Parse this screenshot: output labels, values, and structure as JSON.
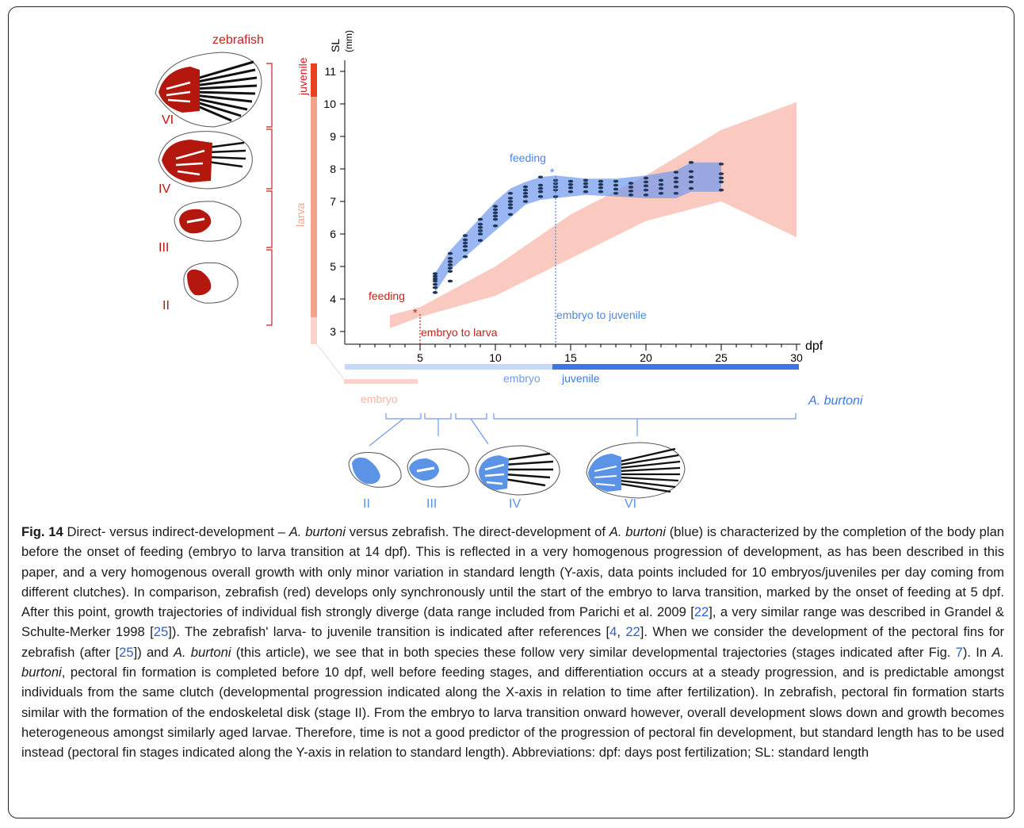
{
  "figure": {
    "zebrafish_title": "zebrafish",
    "aburtoni_title": "A.  burtoni",
    "zebrafish_color": "#c8201c",
    "aburtoni_color": "#4a86e8",
    "zebrafish_stages": [
      {
        "label": "juvenile"
      },
      {
        "label": "larva"
      },
      {
        "label": "embryo"
      }
    ],
    "zebrafish_fin_stages": [
      "VI",
      "IV",
      "III",
      "II"
    ],
    "aburtoni_fin_stages": [
      "II",
      "III",
      "IV",
      "VI"
    ],
    "aburtoni_stages": [
      "embryo",
      "juvenile"
    ],
    "annotations": {
      "zebra_feeding": "feeding",
      "zebra_feeding_star": "*",
      "zebra_transition": "embryo to larva",
      "burtoni_feeding": "feeding",
      "burtoni_feeding_star": "*",
      "burtoni_transition": "embryo to juvenile"
    }
  },
  "chart_data": {
    "type": "scatter",
    "xlabel": "dpf",
    "ylabel": "SL (mm)",
    "xlim": [
      0,
      30
    ],
    "ylim": [
      3,
      11
    ],
    "xticks": [
      5,
      10,
      15,
      20,
      25,
      30
    ],
    "yticks": [
      3,
      4,
      5,
      6,
      7,
      8,
      9,
      10,
      11
    ],
    "zebrafish_feeding_dpf": 5,
    "aburtoni_feeding_dpf": 14,
    "zebrafish_range_band": {
      "x": [
        3,
        5,
        10,
        15,
        20,
        25,
        30
      ],
      "lower": [
        3.1,
        3.45,
        4.1,
        5.25,
        6.4,
        7.0,
        5.9
      ],
      "upper": [
        3.5,
        3.75,
        5.0,
        6.6,
        7.8,
        9.2,
        10.05
      ]
    },
    "aburtoni_range_band": {
      "x": [
        6,
        7,
        8,
        9,
        10,
        11,
        12,
        13,
        14,
        16,
        18,
        20,
        22,
        23,
        24,
        25
      ],
      "lower": [
        4.2,
        4.9,
        5.3,
        5.7,
        6.1,
        6.5,
        6.9,
        7.05,
        7.1,
        7.2,
        7.15,
        7.1,
        7.1,
        7.3,
        7.3,
        7.3
      ],
      "upper": [
        4.8,
        5.5,
        6.0,
        6.5,
        7.0,
        7.4,
        7.6,
        7.75,
        7.8,
        7.7,
        7.7,
        7.8,
        7.95,
        8.2,
        8.2,
        8.2
      ]
    },
    "series": [
      {
        "name": "A. burtoni",
        "points": [
          [
            6,
            4.2
          ],
          [
            6,
            4.35
          ],
          [
            6,
            4.45
          ],
          [
            6,
            4.55
          ],
          [
            6,
            4.62
          ],
          [
            6,
            4.7
          ],
          [
            6,
            4.78
          ],
          [
            7,
            4.55
          ],
          [
            7,
            4.85
          ],
          [
            7,
            4.95
          ],
          [
            7,
            5.05
          ],
          [
            7,
            5.15
          ],
          [
            7,
            5.25
          ],
          [
            7,
            5.4
          ],
          [
            8,
            5.3
          ],
          [
            8,
            5.5
          ],
          [
            8,
            5.62
          ],
          [
            8,
            5.72
          ],
          [
            8,
            5.82
          ],
          [
            8,
            5.95
          ],
          [
            9,
            5.8
          ],
          [
            9,
            6.0
          ],
          [
            9,
            6.1
          ],
          [
            9,
            6.2
          ],
          [
            9,
            6.3
          ],
          [
            9,
            6.45
          ],
          [
            10,
            6.25
          ],
          [
            10,
            6.45
          ],
          [
            10,
            6.55
          ],
          [
            10,
            6.65
          ],
          [
            10,
            6.75
          ],
          [
            10,
            6.85
          ],
          [
            11,
            6.6
          ],
          [
            11,
            6.8
          ],
          [
            11,
            6.9
          ],
          [
            11,
            7.0
          ],
          [
            11,
            7.1
          ],
          [
            11,
            7.25
          ],
          [
            12,
            7.0
          ],
          [
            12,
            7.15
          ],
          [
            12,
            7.25
          ],
          [
            12,
            7.35
          ],
          [
            12,
            7.45
          ],
          [
            13,
            7.15
          ],
          [
            13,
            7.3
          ],
          [
            13,
            7.4
          ],
          [
            13,
            7.5
          ],
          [
            13,
            7.75
          ],
          [
            14,
            7.15
          ],
          [
            14,
            7.35
          ],
          [
            14,
            7.45
          ],
          [
            14,
            7.55
          ],
          [
            14,
            7.65
          ],
          [
            15,
            7.3
          ],
          [
            15,
            7.42
          ],
          [
            15,
            7.52
          ],
          [
            15,
            7.62
          ],
          [
            16,
            7.3
          ],
          [
            16,
            7.45
          ],
          [
            16,
            7.55
          ],
          [
            16,
            7.65
          ],
          [
            17,
            7.3
          ],
          [
            17,
            7.42
          ],
          [
            17,
            7.52
          ],
          [
            17,
            7.62
          ],
          [
            18,
            7.25
          ],
          [
            18,
            7.38
          ],
          [
            18,
            7.5
          ],
          [
            18,
            7.62
          ],
          [
            19,
            7.2
          ],
          [
            19,
            7.32
          ],
          [
            19,
            7.44
          ],
          [
            19,
            7.56
          ],
          [
            20,
            7.2
          ],
          [
            20,
            7.35
          ],
          [
            20,
            7.48
          ],
          [
            20,
            7.6
          ],
          [
            20,
            7.72
          ],
          [
            21,
            7.25
          ],
          [
            21,
            7.4
          ],
          [
            21,
            7.52
          ],
          [
            21,
            7.65
          ],
          [
            22,
            7.25
          ],
          [
            22,
            7.45
          ],
          [
            22,
            7.6
          ],
          [
            22,
            7.72
          ],
          [
            22,
            7.9
          ],
          [
            23,
            7.4
          ],
          [
            23,
            7.6
          ],
          [
            23,
            7.75
          ],
          [
            23,
            7.92
          ],
          [
            23,
            8.2
          ],
          [
            25,
            7.35
          ],
          [
            25,
            7.6
          ],
          [
            25,
            7.72
          ],
          [
            25,
            7.85
          ],
          [
            25,
            8.15
          ]
        ]
      }
    ]
  },
  "caption": {
    "fig_label": "Fig. 14",
    "parts": [
      {
        "t": " Direct- versus indirect-development – "
      },
      {
        "t": "A. burtoni",
        "i": true
      },
      {
        "t": " versus zebrafish. The direct-development of "
      },
      {
        "t": "A. burtoni",
        "i": true
      },
      {
        "t": " (blue) is characterized by the completion of the body plan before the onset of feeding (embryo to larva transition at 14 dpf). This is reflected in a very homogenous progression of development, as has been described in this paper, and a very homogenous overall growth with only minor variation in standard length (Y-axis, data points included for 10 embryos/juveniles per day coming from different clutches). In comparison, zebrafish (red) develops only synchronously until the start of the embryo to larva transition, marked by the onset of feeding at 5 dpf. After this point, growth trajectories of individual fish strongly diverge (data range included from Parichi et al. 2009 ["
      },
      {
        "t": "22",
        "r": true
      },
      {
        "t": "], a very similar range was described in Grandel & Schulte-Merker 1998 ["
      },
      {
        "t": "25",
        "r": true
      },
      {
        "t": "]). The zebrafish' larva- to juvenile transition is indicated after references ["
      },
      {
        "t": "4",
        "r": true
      },
      {
        "t": ", "
      },
      {
        "t": "22",
        "r": true
      },
      {
        "t": "]. When we consider the development of the pectoral fins for zebrafish (after ["
      },
      {
        "t": "25",
        "r": true
      },
      {
        "t": "]) and "
      },
      {
        "t": "A. burtoni",
        "i": true
      },
      {
        "t": " (this article), we see that in both species these follow very similar developmental trajectories (stages indicated after Fig. "
      },
      {
        "t": "7",
        "r": true
      },
      {
        "t": "). In "
      },
      {
        "t": "A. burtoni",
        "i": true
      },
      {
        "t": ", pectoral fin formation is completed before 10 dpf, well before feeding stages, and differentiation occurs at a steady progression, and is predictable amongst individuals from the same clutch (developmental progression indicated along the X-axis in relation to time after fertilization). In zebrafish, pectoral fin formation starts similar with the formation of the endoskeletal disk (stage II). From the embryo to larva transition onward however, overall development slows down and growth becomes heterogeneous amongst similarly aged larvae. Therefore, time is not a good predictor of the progression of pectoral fin development, but standard length has to be used instead (pectoral fin stages indicated along the Y-axis in relation to standard length). Abbreviations: dpf: days post fertilization; SL: standard length"
      }
    ]
  }
}
